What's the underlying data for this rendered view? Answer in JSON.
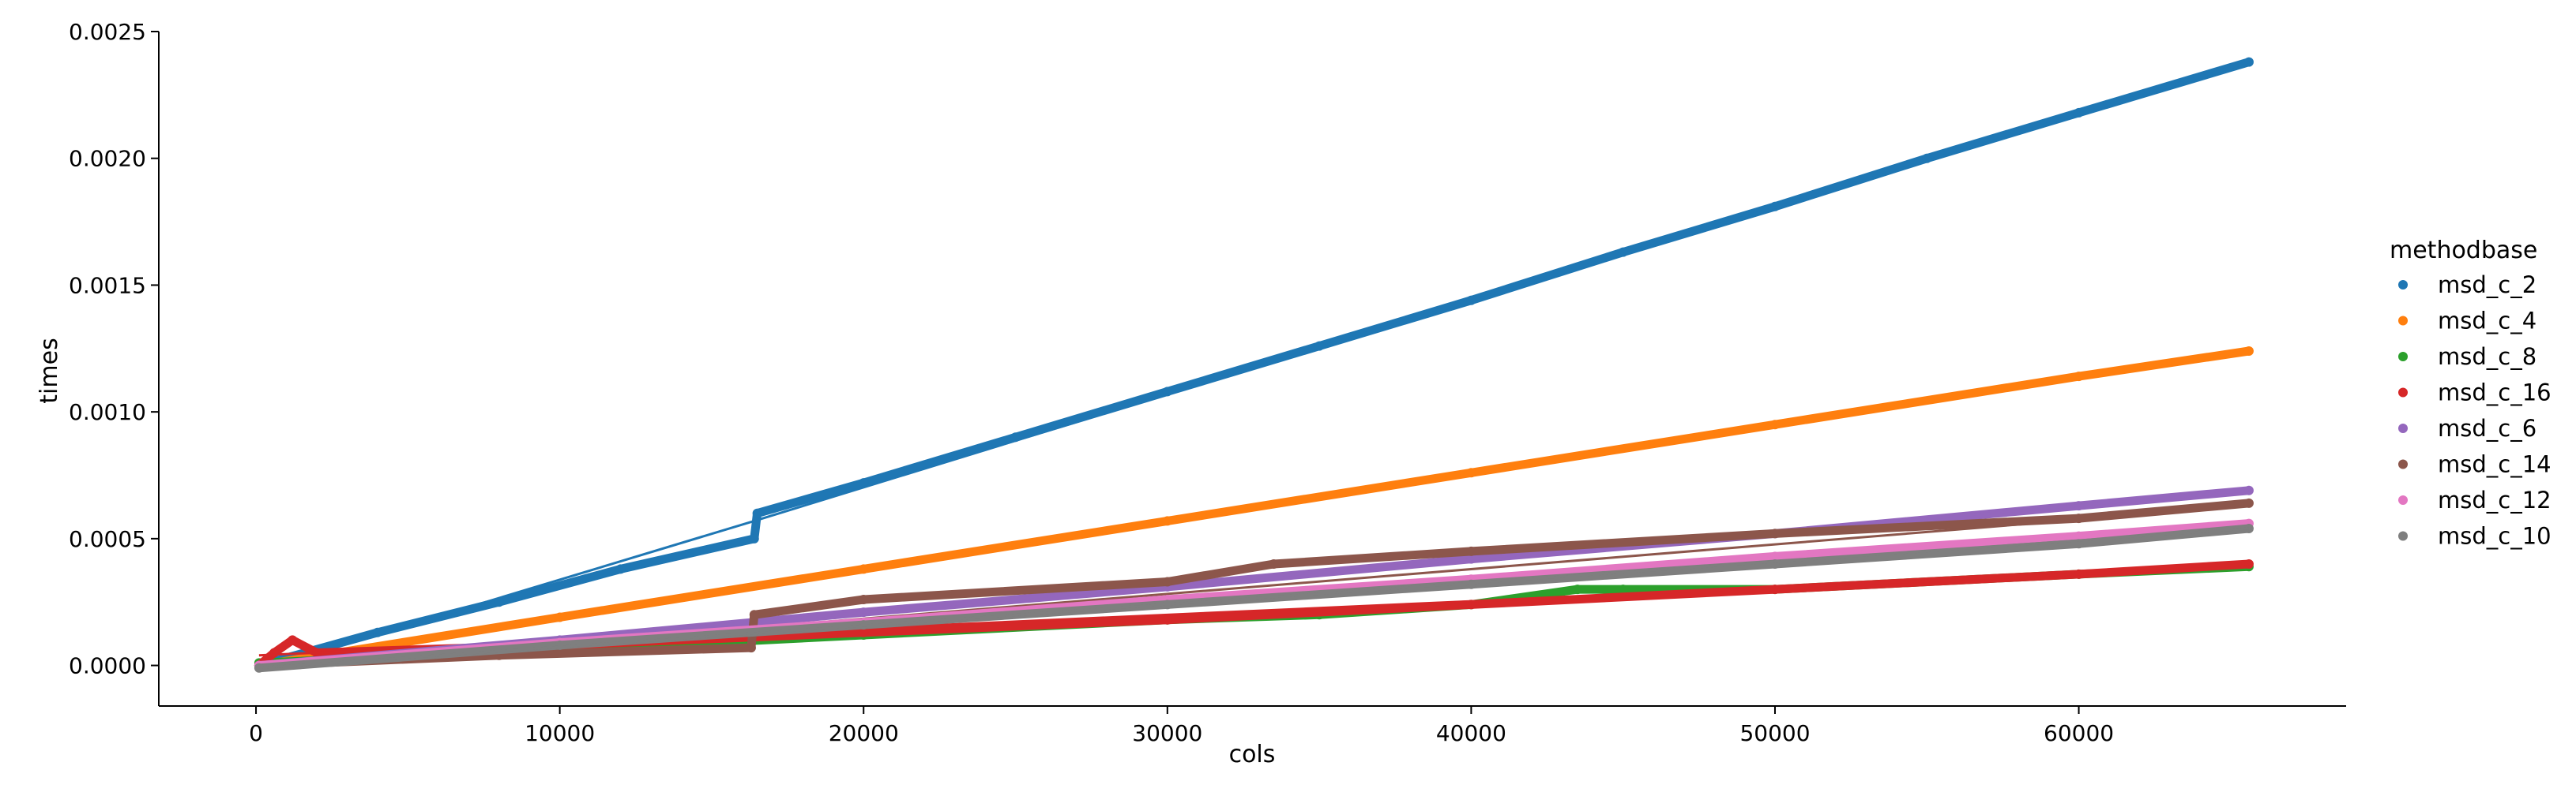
{
  "chart_data": {
    "type": "scatter",
    "xlabel": "cols",
    "ylabel": "times",
    "xlim": [
      -3200,
      68800
    ],
    "ylim": [
      -0.00016,
      0.0025
    ],
    "x_ticks": [
      0,
      10000,
      20000,
      30000,
      40000,
      50000,
      60000
    ],
    "x_tick_labels": [
      "0",
      "10000",
      "20000",
      "30000",
      "40000",
      "50000",
      "60000"
    ],
    "y_ticks": [
      0.0,
      0.0005,
      0.001,
      0.0015,
      0.002,
      0.0025
    ],
    "y_tick_labels": [
      "0.0000",
      "0.0005",
      "0.0010",
      "0.0015",
      "0.0020",
      "0.0025"
    ],
    "grid": false,
    "legend": {
      "title": "methodbase",
      "placement": "right"
    },
    "series": [
      {
        "name": "msd_c_2",
        "color": "#1f77b4",
        "x": [
          100,
          4000,
          8000,
          12000,
          16400,
          16500,
          20000,
          25000,
          30000,
          35000,
          40000,
          45000,
          50000,
          55000,
          60000,
          65600
        ],
        "y": [
          0.0,
          0.00013,
          0.00025,
          0.00038,
          0.0005,
          0.0006,
          0.00072,
          0.0009,
          0.00108,
          0.00126,
          0.00144,
          0.00163,
          0.00181,
          0.002,
          0.00218,
          0.00238
        ],
        "fit": [
          [
            100,
            -2e-05
          ],
          [
            16400,
            0.00057
          ],
          [
            65600,
            0.00238
          ]
        ]
      },
      {
        "name": "msd_c_4",
        "color": "#ff7f0e",
        "x": [
          100,
          10000,
          20000,
          30000,
          40000,
          50000,
          60000,
          65600
        ],
        "y": [
          0.0,
          0.00019,
          0.00038,
          0.00057,
          0.00076,
          0.00095,
          0.00114,
          0.00124
        ],
        "fit": [
          [
            100,
            0.0
          ],
          [
            65600,
            0.00124
          ]
        ]
      },
      {
        "name": "msd_c_8",
        "color": "#2ca02c",
        "x": [
          100,
          10000,
          20000,
          30000,
          35000,
          40000,
          43500,
          45000,
          50000,
          60000,
          65600
        ],
        "y": [
          1e-05,
          6e-05,
          0.00012,
          0.00018,
          0.0002,
          0.00024,
          0.0003,
          0.0003,
          0.0003,
          0.00036,
          0.00039
        ],
        "fit": [
          [
            100,
            1e-05
          ],
          [
            65600,
            0.00039
          ]
        ]
      },
      {
        "name": "msd_c_16",
        "color": "#d62728",
        "x": [
          100,
          600,
          1200,
          2000,
          10000,
          20000,
          30000,
          40000,
          50000,
          60000,
          65600
        ],
        "y": [
          0.0,
          5e-05,
          0.0001,
          5e-05,
          8e-05,
          0.00013,
          0.00018,
          0.00024,
          0.0003,
          0.00036,
          0.0004
        ],
        "fit": [
          [
            100,
            4e-05
          ],
          [
            65600,
            0.00039
          ]
        ]
      },
      {
        "name": "msd_c_6",
        "color": "#9467bd",
        "x": [
          100,
          10000,
          20000,
          30000,
          40000,
          50000,
          60000,
          65600
        ],
        "y": [
          0.0,
          0.0001,
          0.00021,
          0.00031,
          0.00042,
          0.00052,
          0.00063,
          0.00069
        ],
        "fit": [
          [
            100,
            0.0
          ],
          [
            65600,
            0.00069
          ]
        ]
      },
      {
        "name": "msd_c_14",
        "color": "#8c564b",
        "x": [
          100,
          8000,
          16300,
          16400,
          20000,
          30000,
          33500,
          40000,
          50000,
          60000,
          65600
        ],
        "y": [
          0.0,
          4e-05,
          7e-05,
          0.0002,
          0.00026,
          0.00033,
          0.0004,
          0.00045,
          0.00052,
          0.00058,
          0.00064
        ],
        "fit": [
          [
            100,
            -1e-05
          ],
          [
            65600,
            0.00063
          ]
        ]
      },
      {
        "name": "msd_c_12",
        "color": "#e377c2",
        "x": [
          100,
          10000,
          20000,
          30000,
          40000,
          50000,
          60000,
          65600
        ],
        "y": [
          0.0,
          9e-05,
          0.00017,
          0.00026,
          0.00034,
          0.00043,
          0.00051,
          0.00056
        ],
        "fit": [
          [
            100,
            0.0
          ],
          [
            65600,
            0.00056
          ]
        ]
      },
      {
        "name": "msd_c_10",
        "color": "#7f7f7f",
        "x": [
          100,
          10000,
          20000,
          30000,
          40000,
          50000,
          60000,
          65600
        ],
        "y": [
          -1e-05,
          8e-05,
          0.00016,
          0.00024,
          0.00032,
          0.0004,
          0.00048,
          0.00054
        ],
        "fit": [
          [
            100,
            -1e-05
          ],
          [
            65600,
            0.00054
          ]
        ]
      }
    ]
  }
}
